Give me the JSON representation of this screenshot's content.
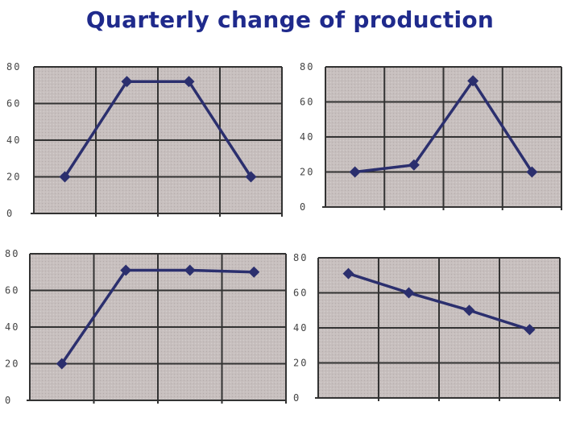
{
  "page": {
    "title": "Quarterly change of production"
  },
  "colors": {
    "title": "#1f2a8c",
    "series": "#2b2f6e",
    "plot_bg": "#c7bfbe",
    "grid": "#333333"
  },
  "chart_data": [
    {
      "type": "line",
      "title": "",
      "xlabel": "",
      "ylabel": "",
      "x": [
        1,
        2,
        3,
        4
      ],
      "values": [
        20,
        72,
        72,
        20
      ],
      "ylim": [
        0,
        80
      ],
      "yticks": [
        "0",
        "20",
        "40",
        "60",
        "80"
      ],
      "grid": true,
      "marker": "diamond"
    },
    {
      "type": "line",
      "title": "",
      "xlabel": "",
      "ylabel": "",
      "x": [
        1,
        2,
        3,
        4
      ],
      "values": [
        20,
        24,
        72,
        20
      ],
      "ylim": [
        0,
        80
      ],
      "yticks": [
        "0",
        "20",
        "40",
        "60",
        "80"
      ],
      "grid": true,
      "marker": "diamond"
    },
    {
      "type": "line",
      "title": "",
      "xlabel": "",
      "ylabel": "",
      "x": [
        1,
        2,
        3,
        4
      ],
      "values": [
        20,
        71,
        71,
        70
      ],
      "ylim": [
        0,
        80
      ],
      "yticks": [
        "0",
        "20",
        "40",
        "60",
        "80"
      ],
      "grid": true,
      "marker": "diamond"
    },
    {
      "type": "line",
      "title": "",
      "xlabel": "",
      "ylabel": "",
      "x": [
        1,
        2,
        3,
        4
      ],
      "values": [
        71,
        60,
        50,
        39
      ],
      "ylim": [
        0,
        80
      ],
      "yticks": [
        "0",
        "20",
        "40",
        "60",
        "80"
      ],
      "grid": true,
      "marker": "diamond"
    }
  ]
}
